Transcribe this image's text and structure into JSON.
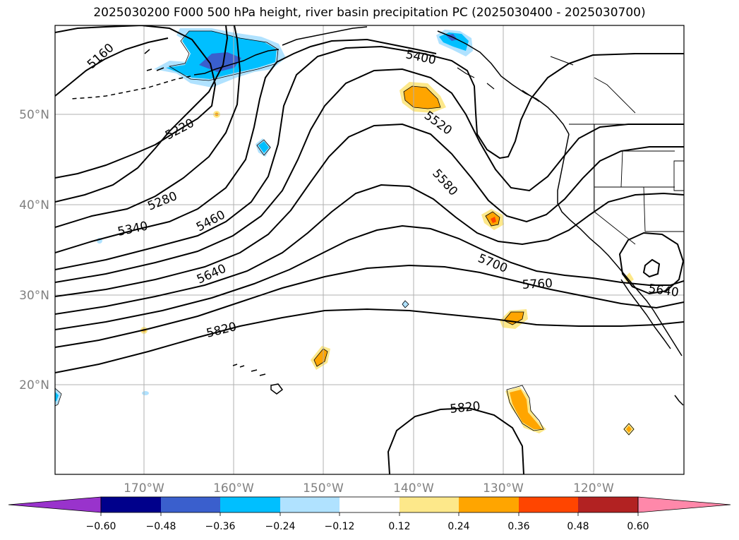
{
  "title": "2025030200 F000 500 hPa height, river basin precipitation PC (2025030400 - 2025030700)",
  "lat_labels": [
    "50°N",
    "40°N",
    "30°N",
    "20°N"
  ],
  "lon_labels": [
    "170°W",
    "160°W",
    "150°W",
    "140°W",
    "130°W",
    "120°W"
  ],
  "contour_labels": [
    "5160",
    "5220",
    "5280",
    "5340",
    "5400",
    "5460",
    "5520",
    "5580",
    "5640",
    "5700",
    "5760",
    "5820",
    "5820",
    "5640"
  ],
  "colorbar": {
    "ticks": [
      "−0.60",
      "−0.48",
      "−0.36",
      "−0.24",
      "−0.12",
      "0.12",
      "0.24",
      "0.36",
      "0.48",
      "0.60"
    ],
    "colors": [
      "#9933cc",
      "#00008b",
      "#3a5fcd",
      "#00bfff",
      "#b0e2ff",
      "#ffffff",
      "#fde88a",
      "#ffa500",
      "#ff4500",
      "#b22222",
      "#ff88aa",
      "#ff88aa"
    ],
    "under_color": "#9933cc",
    "over_color": "#ff88aa"
  },
  "colors": {
    "contour": "#000000",
    "grid": "#b0b0b0",
    "coast": "#000000",
    "axis_label": "#808080"
  }
}
